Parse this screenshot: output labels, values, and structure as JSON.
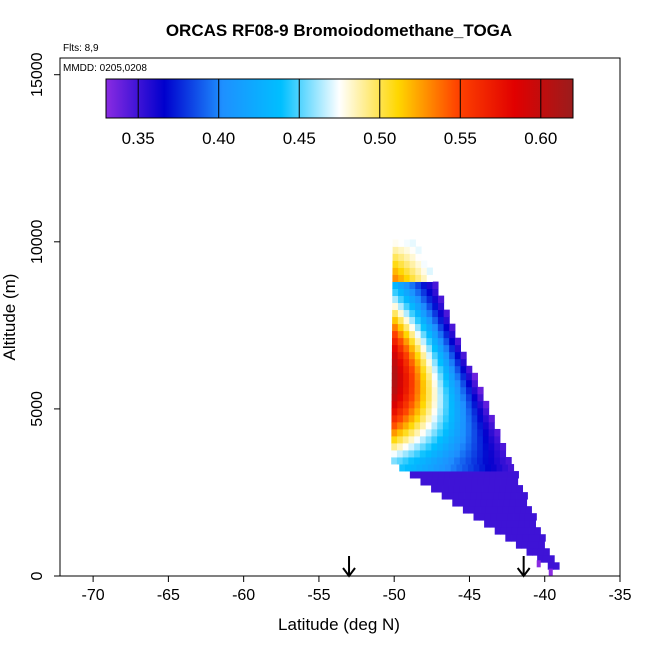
{
  "chart_data": {
    "type": "heatmap",
    "title": "ORCAS RF08-9 Bromoiodomethane_TOGA",
    "flights_note": "Flts: 8,9",
    "date_note": "MMDD: 0205,0208",
    "xlabel": "Latitude (deg N)",
    "ylabel": "Altitude (m)",
    "xlim": [
      -72.2,
      -35
    ],
    "ylim": [
      0,
      15500
    ],
    "x_ticks": [
      -70,
      -65,
      -60,
      -55,
      -50,
      -45,
      -40,
      -35
    ],
    "x_tick_labels": [
      "-70",
      "-65",
      "-60",
      "-55",
      "-50",
      "-45",
      "-40",
      "-35"
    ],
    "y_ticks": [
      0,
      5000,
      10000,
      15000
    ],
    "y_tick_labels": [
      "0",
      "5000",
      "10000",
      "15000"
    ],
    "colorbar": {
      "range": [
        0.33,
        0.62
      ],
      "ticks": [
        0.35,
        0.4,
        0.45,
        0.5,
        0.55,
        0.6
      ],
      "tick_labels": [
        "0.35",
        "0.40",
        "0.45",
        "0.50",
        "0.55",
        "0.60"
      ],
      "colors": [
        "#8a2be2",
        "#0000cd",
        "#1e90ff",
        "#00bfff",
        "#ffffff",
        "#ffd700",
        "#ff4500",
        "#e10000",
        "#9b1c1c"
      ]
    },
    "arrows_latitude": [
      -53,
      -41.4
    ],
    "wedge": {
      "bottom_left": [
        -50.2,
        3300
      ],
      "top_left": [
        -50.1,
        10000
      ],
      "apex": [
        -39.8,
        200
      ],
      "max_value_altitude": 5800,
      "max_value": 0.61,
      "edge_value": 0.35
    },
    "outliers": [
      {
        "lat": -40.4,
        "alt": 350,
        "value": 0.33
      },
      {
        "lat": -39.6,
        "alt": 100,
        "value": 0.33
      }
    ]
  }
}
